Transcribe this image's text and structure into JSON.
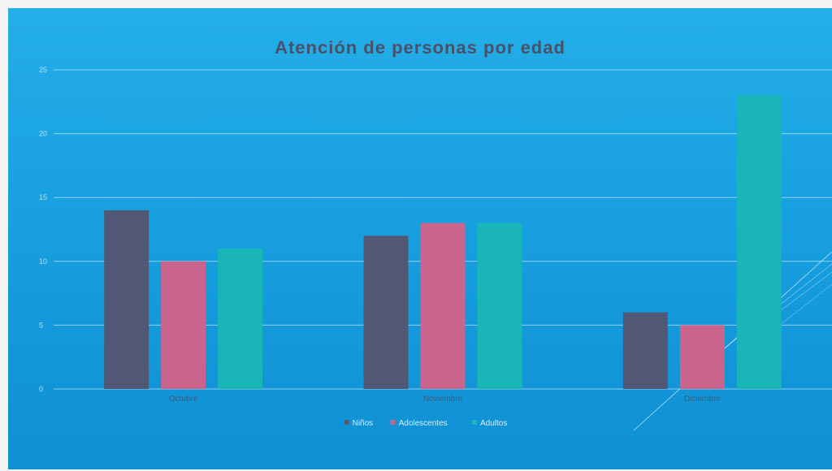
{
  "chart_data": {
    "type": "bar",
    "title": "Atención de personas por edad",
    "categories": [
      "Octubre",
      "Noviembre",
      "Diciembre"
    ],
    "series": [
      {
        "name": "Niños",
        "values": [
          14,
          12,
          6
        ],
        "color": "#4f5774"
      },
      {
        "name": "Adolescentes",
        "values": [
          10,
          13,
          5
        ],
        "color": "#c9638c"
      },
      {
        "name": "Adultos",
        "values": [
          11,
          13,
          23
        ],
        "color": "#17b5b6"
      }
    ],
    "ylim": [
      0,
      25
    ],
    "yticks": [
      0,
      5,
      10,
      15,
      20,
      25
    ],
    "grid": true,
    "legend_position": "bottom"
  }
}
